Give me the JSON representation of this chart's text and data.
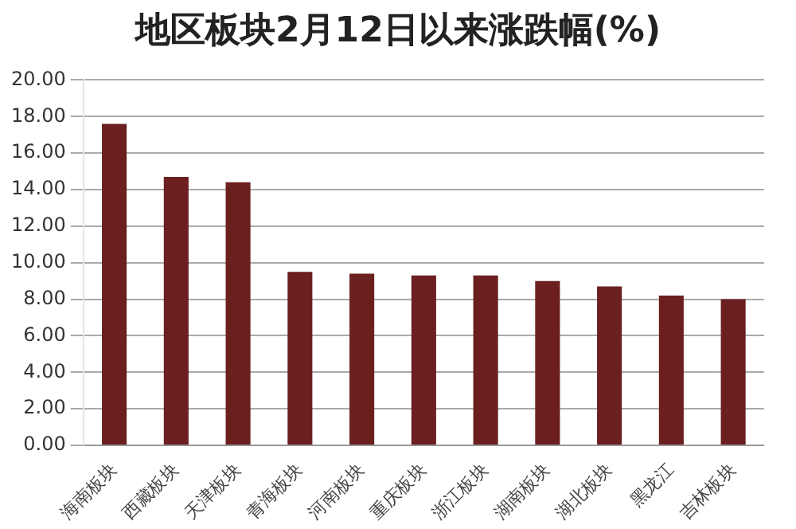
{
  "chart_data": {
    "type": "bar",
    "title": "地区板块2月12日以来涨跌幅(%)",
    "categories": [
      "海南板块",
      "西藏板块",
      "天津板块",
      "青海板块",
      "河南板块",
      "重庆板块",
      "浙江板块",
      "湖南板块",
      "湖北板块",
      "黑龙江",
      "吉林板块"
    ],
    "values": [
      17.6,
      14.7,
      14.4,
      9.5,
      9.4,
      9.3,
      9.3,
      9.0,
      8.7,
      8.2,
      8.0
    ],
    "color": "#6b1f1f",
    "ylim": [
      0,
      20
    ],
    "yticks": [
      {
        "value": 0,
        "label": "0.00"
      },
      {
        "value": 2,
        "label": "2.00"
      },
      {
        "value": 4,
        "label": "4.00"
      },
      {
        "value": 6,
        "label": "6.00"
      },
      {
        "value": 8,
        "label": "8.00"
      },
      {
        "value": 10,
        "label": "10.00"
      },
      {
        "value": 12,
        "label": "12.00"
      },
      {
        "value": 14,
        "label": "14.00"
      },
      {
        "value": 16,
        "label": "16.00"
      },
      {
        "value": 18,
        "label": "18.00"
      },
      {
        "value": 20,
        "label": "20.00"
      }
    ],
    "grid": "y",
    "legend": false
  }
}
